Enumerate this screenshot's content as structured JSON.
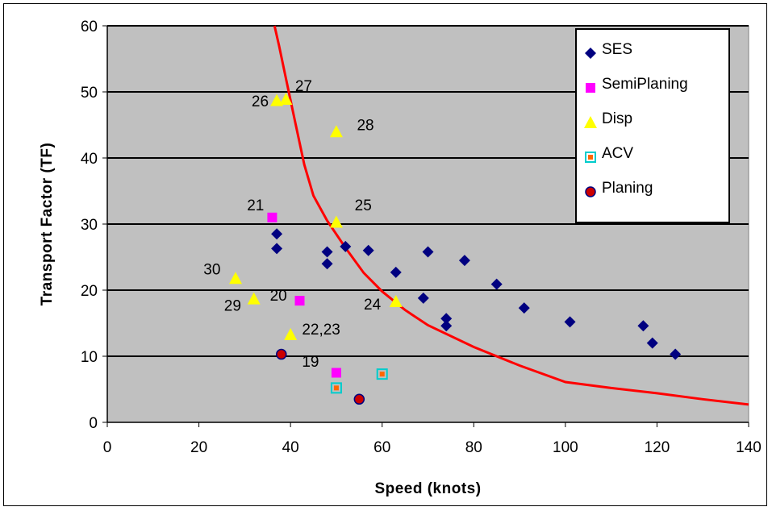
{
  "chart_data": {
    "type": "scatter",
    "title": "",
    "xlabel": "Speed (knots)",
    "ylabel": "Transport Factor (TF)",
    "xlim": [
      0,
      140
    ],
    "ylim": [
      0,
      60
    ],
    "xticks": [
      0,
      20,
      40,
      60,
      80,
      100,
      120,
      140
    ],
    "yticks": [
      0,
      10,
      20,
      30,
      40,
      50,
      60
    ],
    "grid": "horizontal",
    "legend_position": "top-right",
    "series": [
      {
        "name": "SES",
        "marker": "diamond",
        "color": "#000080",
        "points": [
          [
            37,
            28.5
          ],
          [
            37,
            26.3
          ],
          [
            48,
            25.8
          ],
          [
            48,
            24
          ],
          [
            52,
            26.6
          ],
          [
            57,
            26
          ],
          [
            63,
            22.7
          ],
          [
            69,
            18.8
          ],
          [
            70,
            25.8
          ],
          [
            74,
            15.7
          ],
          [
            74,
            14.6
          ],
          [
            78,
            24.5
          ],
          [
            85,
            20.9
          ],
          [
            91,
            17.3
          ],
          [
            101,
            15.2
          ],
          [
            117,
            14.6
          ],
          [
            119,
            12
          ],
          [
            124,
            10.3
          ]
        ]
      },
      {
        "name": "SemiPlaning",
        "marker": "square",
        "color": "#ff00ff",
        "points": [
          [
            36,
            31
          ],
          [
            42,
            18.4
          ],
          [
            50,
            7.5
          ]
        ]
      },
      {
        "name": "Disp",
        "marker": "triangle",
        "color": "#ffff00",
        "points": [
          [
            37,
            48.7
          ],
          [
            39,
            48.9
          ],
          [
            50,
            44
          ],
          [
            50,
            30.3
          ],
          [
            28,
            21.8
          ],
          [
            32,
            18.7
          ],
          [
            40,
            13.3
          ],
          [
            63,
            18.3
          ]
        ]
      },
      {
        "name": "ACV",
        "marker": "square-hollow",
        "color": "#00cccc",
        "inner_color": "#ff6600",
        "points": [
          [
            50,
            5.2
          ],
          [
            60,
            7.3
          ]
        ]
      },
      {
        "name": "Planing",
        "marker": "circle",
        "color": "#cc0000",
        "edge_color": "#000080",
        "points": [
          [
            38,
            10.3
          ],
          [
            55,
            3.5
          ]
        ]
      }
    ],
    "curve": {
      "color": "#ff0000",
      "points": [
        [
          36.5,
          60
        ],
        [
          37.5,
          57
        ],
        [
          39,
          52
        ],
        [
          41,
          45.5
        ],
        [
          43,
          39
        ],
        [
          45,
          34.3
        ],
        [
          48,
          30.5
        ],
        [
          52,
          26.4
        ],
        [
          56,
          22.6
        ],
        [
          60,
          19.8
        ],
        [
          65,
          17
        ],
        [
          70,
          14.7
        ],
        [
          80,
          11.4
        ],
        [
          90,
          8.6
        ],
        [
          100,
          6.1
        ],
        [
          110,
          5.2
        ],
        [
          120,
          4.4
        ],
        [
          130,
          3.5
        ],
        [
          140,
          2.7
        ]
      ]
    },
    "annotations": [
      {
        "text": "26",
        "x": 31.5,
        "y": 47.8
      },
      {
        "text": "27",
        "x": 41,
        "y": 50.1
      },
      {
        "text": "28",
        "x": 54.5,
        "y": 44.2
      },
      {
        "text": "21",
        "x": 30.5,
        "y": 32.1
      },
      {
        "text": "25",
        "x": 54,
        "y": 32.1
      },
      {
        "text": "30",
        "x": 21,
        "y": 22.4
      },
      {
        "text": "29",
        "x": 25.5,
        "y": 16.9
      },
      {
        "text": "20",
        "x": 35.5,
        "y": 18.4
      },
      {
        "text": "24",
        "x": 56,
        "y": 17.1
      },
      {
        "text": "22,23",
        "x": 42.5,
        "y": 13.3
      },
      {
        "text": "19",
        "x": 42.5,
        "y": 8.4
      }
    ]
  }
}
